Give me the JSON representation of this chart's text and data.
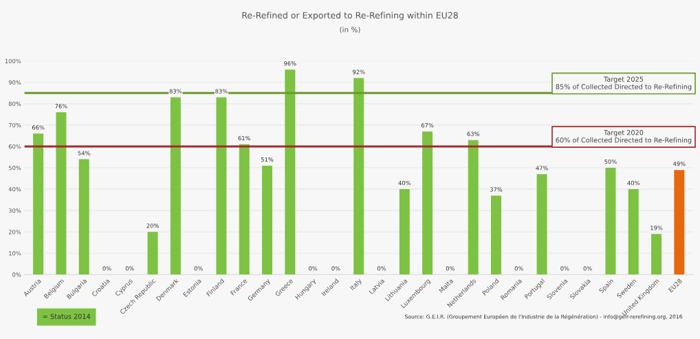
{
  "chart_data": {
    "type": "bar",
    "title": "Re-Refined or Exported to Re-Refining within EU28",
    "subtitle": "(in %)",
    "categories": [
      "Austria",
      "Belgium",
      "Bulgaria",
      "Croatia",
      "Cyprus",
      "Czech Republic",
      "Denmark",
      "Estonia",
      "Finland",
      "France",
      "Germany",
      "Greece",
      "Hungary",
      "Ireland",
      "Italy",
      "Latvia",
      "Lithuania",
      "Luxembourg",
      "Malta",
      "Netherlands",
      "Poland",
      "Romania",
      "Portugal",
      "Slovenia",
      "Slovakia",
      "Spain",
      "Sweden",
      "United Kingdom",
      "EU28"
    ],
    "values": [
      66,
      76,
      54,
      0,
      0,
      20,
      83,
      0,
      83,
      61,
      51,
      96,
      0,
      0,
      92,
      0,
      40,
      67,
      0,
      63,
      37,
      0,
      47,
      0,
      0,
      50,
      40,
      19,
      49
    ],
    "value_labels": [
      "66%",
      "76%",
      "54%",
      "0%",
      "0%",
      "20%",
      "83%",
      "0%",
      "83%",
      "61%",
      "51%",
      "96%",
      "0%",
      "0%",
      "92%",
      "0%",
      "40%",
      "67%",
      "0%",
      "63%",
      "37%",
      "0%",
      "47%",
      "0%",
      "0%",
      "50%",
      "40%",
      "19%",
      "49%"
    ],
    "colors": [
      "#7dc242",
      "#7dc242",
      "#7dc242",
      "#7dc242",
      "#7dc242",
      "#7dc242",
      "#7dc242",
      "#7dc242",
      "#7dc242",
      "#7dc242",
      "#7dc242",
      "#7dc242",
      "#7dc242",
      "#7dc242",
      "#7dc242",
      "#7dc242",
      "#7dc242",
      "#7dc242",
      "#7dc242",
      "#7dc242",
      "#7dc242",
      "#7dc242",
      "#7dc242",
      "#7dc242",
      "#7dc242",
      "#7dc242",
      "#7dc242",
      "#7dc242",
      "#e8670c"
    ],
    "ylim": [
      0,
      100
    ],
    "yticks": [
      {
        "value": 0,
        "label": "0%"
      },
      {
        "value": 10,
        "label": "10%"
      },
      {
        "value": 20,
        "label": "20%"
      },
      {
        "value": 30,
        "label": "30%"
      },
      {
        "value": 40,
        "label": "40%"
      },
      {
        "value": 50,
        "label": "50%"
      },
      {
        "value": 60,
        "label": "60%"
      },
      {
        "value": 70,
        "label": "70%"
      },
      {
        "value": 80,
        "label": "80%"
      },
      {
        "value": 90,
        "label": "90%"
      },
      {
        "value": 100,
        "label": "100%"
      }
    ],
    "grid": "y",
    "ref_lines": [
      {
        "axis": "y",
        "value": 85,
        "label": "Target 2025\n85% of Collected Directed to Re-Refining",
        "color": "#6a9a2a"
      },
      {
        "axis": "y",
        "value": 60,
        "label": "Target 2020\n60% of Collected Directed to Re-Refining",
        "color": "#a52a2a"
      }
    ],
    "annotations": [
      "= Status 2014",
      "Source: G.E.I.R. (Groupement Européen de l'Industrie de la Régénération) - info@geir-rerefining.org, 2016"
    ]
  }
}
